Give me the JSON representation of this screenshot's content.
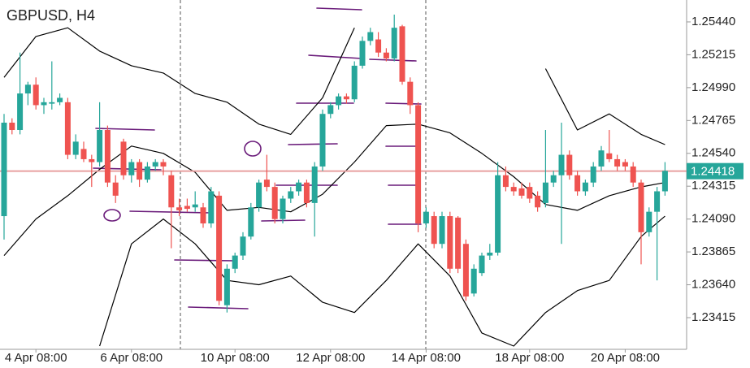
{
  "chart_data": {
    "type": "candlestick",
    "title": "GBPUSD, H4",
    "categories": [
      null,
      null,
      null,
      null,
      "4 Apr 08:00",
      null,
      null,
      null,
      null,
      null,
      null,
      null,
      null,
      null,
      null,
      null,
      "6 Apr 08:00",
      null,
      null,
      null,
      null,
      null,
      null,
      null,
      null,
      null,
      null,
      null,
      null,
      "10 Apr 08:00",
      null,
      null,
      null,
      null,
      null,
      null,
      null,
      null,
      null,
      null,
      null,
      "12 Apr 08:00",
      null,
      null,
      null,
      null,
      null,
      null,
      null,
      null,
      null,
      null,
      null,
      "14 Apr 08:00",
      null,
      null,
      null,
      null,
      null,
      null,
      null,
      null,
      null,
      null,
      null,
      null,
      "18 Apr 08:00",
      null,
      null,
      null,
      null,
      null,
      null,
      null,
      null,
      null,
      null,
      null,
      "20 Apr 08:00",
      null,
      null,
      null,
      null,
      null
    ],
    "open": [
      1.2411,
      1.2475,
      1.247,
      1.2495,
      1.2501,
      1.2487,
      1.2488,
      1.2489,
      1.2489,
      1.2453,
      1.2457,
      1.245,
      1.2448,
      1.247,
      1.2434,
      1.2462,
      1.2439,
      1.2448,
      1.2436,
      1.2445,
      1.2448,
      1.2439,
      1.2417,
      1.2418,
      1.2417,
      1.2417,
      1.2406,
      1.2425,
      1.235,
      1.2375,
      1.2384,
      1.2397,
      1.2417,
      1.2436,
      1.2431,
      1.2409,
      1.2423,
      1.2428,
      1.2434,
      1.242,
      1.2445,
      1.2481,
      1.2487,
      1.2493,
      1.2491,
      1.2514,
      1.2531,
      1.2532,
      1.2523,
      1.2519,
      1.2541,
      1.2503,
      1.2487,
      1.2406,
      1.2411,
      1.2392,
      1.2411,
      1.241,
      1.2392,
      1.2358,
      1.2372,
      1.2384,
      1.2386,
      1.2439,
      1.2431,
      1.243,
      1.2431,
      1.2425,
      1.242,
      1.2434,
      1.2439,
      1.2453,
      1.2439,
      1.2428,
      1.2434,
      1.2445,
      1.2454,
      1.245,
      1.2448,
      1.2445,
      1.2434,
      1.24,
      1.2414,
      1.2428
    ],
    "high": [
      1.2481,
      1.2478,
      1.2523,
      1.2503,
      1.2506,
      1.2492,
      1.2517,
      1.2495,
      1.2492,
      1.2467,
      1.2462,
      1.2453,
      1.2489,
      1.2473,
      1.2439,
      1.2464,
      1.245,
      1.245,
      1.2448,
      1.245,
      1.245,
      1.2442,
      1.2423,
      1.2423,
      1.2428,
      1.242,
      1.2431,
      1.2428,
      1.2378,
      1.2386,
      1.24,
      1.242,
      1.2436,
      1.2453,
      1.2434,
      1.2425,
      1.2431,
      1.2436,
      1.2436,
      1.2448,
      1.2484,
      1.2489,
      1.2495,
      1.2495,
      1.2517,
      1.2534,
      1.254,
      1.2537,
      1.2526,
      1.2549,
      1.2542,
      1.2506,
      1.2489,
      1.2417,
      1.2414,
      1.2414,
      1.2414,
      1.2411,
      1.2395,
      1.2378,
      1.2386,
      1.2392,
      1.2448,
      1.2445,
      1.2434,
      1.2434,
      1.2434,
      1.2428,
      1.247,
      1.2442,
      1.2475,
      1.2456,
      1.2442,
      1.2436,
      1.2448,
      1.2459,
      1.247,
      1.2453,
      1.245,
      1.2448,
      1.2436,
      1.2417,
      1.2431,
      1.2448
    ],
    "low": [
      1.2395,
      1.2467,
      1.2467,
      1.2487,
      1.2484,
      1.2481,
      1.2484,
      1.2487,
      1.245,
      1.245,
      1.2448,
      1.2431,
      1.2445,
      1.2431,
      1.242,
      1.2436,
      1.2434,
      1.2431,
      1.2434,
      1.2442,
      1.2439,
      1.2389,
      1.2411,
      1.2414,
      1.2414,
      1.2403,
      1.2403,
      1.235,
      1.2345,
      1.2372,
      1.2381,
      1.2395,
      1.2414,
      1.2428,
      1.2406,
      1.2406,
      1.242,
      1.2425,
      1.2417,
      1.2397,
      1.2442,
      1.2478,
      1.2484,
      1.2488,
      1.2489,
      1.2512,
      1.2528,
      1.252,
      1.2517,
      1.2517,
      1.2501,
      1.2481,
      1.24,
      1.2403,
      1.2389,
      1.2389,
      1.2372,
      1.2372,
      1.2353,
      1.2356,
      1.237,
      1.2381,
      1.2384,
      1.2428,
      1.2425,
      1.2423,
      1.242,
      1.2414,
      1.2417,
      1.2431,
      1.2392,
      1.2436,
      1.2425,
      1.2425,
      1.2431,
      1.2442,
      1.2448,
      1.2442,
      1.2442,
      1.2431,
      1.2378,
      1.2397,
      1.2367,
      1.2425
    ],
    "close": [
      1.2475,
      1.247,
      1.2495,
      1.2501,
      1.2487,
      1.2489,
      1.2489,
      1.2492,
      1.2453,
      1.2462,
      1.245,
      1.2448,
      1.247,
      1.2434,
      1.2425,
      1.2439,
      1.2448,
      1.2436,
      1.2445,
      1.2448,
      1.2445,
      1.2417,
      1.2415,
      1.2416,
      1.2419,
      1.2406,
      1.2428,
      1.2353,
      1.2375,
      1.2384,
      1.2397,
      1.2417,
      1.2434,
      1.2431,
      1.2409,
      1.2423,
      1.2428,
      1.2434,
      1.242,
      1.2445,
      1.2481,
      1.2487,
      1.2493,
      1.2491,
      1.2514,
      1.2531,
      1.2537,
      1.2523,
      1.2519,
      1.254,
      1.2503,
      1.2487,
      1.2406,
      1.2414,
      1.2392,
      1.2411,
      1.2375,
      1.2375,
      1.2356,
      1.2375,
      1.2384,
      1.2386,
      1.2439,
      1.2431,
      1.2428,
      1.2425,
      1.2423,
      1.2417,
      1.2434,
      1.2439,
      1.2453,
      1.2439,
      1.2428,
      1.2434,
      1.2445,
      1.2456,
      1.245,
      1.2445,
      1.2445,
      1.2434,
      1.24,
      1.2414,
      1.2428,
      1.2442
    ],
    "up_color": "#26a69a",
    "down_color": "#ef5350",
    "bands": {
      "x": [
        0,
        4,
        8,
        12,
        16,
        20,
        24,
        28,
        32,
        36,
        40,
        44,
        48,
        52,
        56,
        60,
        64,
        68,
        72,
        76,
        80,
        83
      ],
      "upper": [
        1.2506,
        1.2534,
        1.254,
        1.2524,
        1.2514,
        1.2509,
        1.2495,
        1.2489,
        1.2474,
        1.2467,
        1.2492,
        1.254,
        null,
        null,
        null,
        null,
        null,
        1.2512,
        1.247,
        1.2481,
        1.2467,
        1.246
      ],
      "middle": [
        1.2384,
        1.2409,
        1.2425,
        1.2443,
        1.2459,
        1.2454,
        1.2441,
        1.2415,
        1.2417,
        1.2414,
        1.2426,
        1.2448,
        1.2473,
        1.2474,
        1.2468,
        1.2454,
        1.2438,
        1.2419,
        1.2415,
        1.2425,
        1.2431,
        1.2434
      ],
      "lower": [
        null,
        null,
        null,
        1.2322,
        1.2392,
        1.2409,
        1.2392,
        1.2367,
        1.2364,
        1.237,
        1.2352,
        1.2345,
        1.2367,
        1.2392,
        1.237,
        1.2331,
        1.2322,
        1.2345,
        1.236,
        1.2367,
        1.2397,
        1.2411
      ],
      "color": "#000000"
    },
    "last_price": 1.24418,
    "ylim": [
      1.23198,
      1.2559
    ],
    "yticks": [
      {
        "value": 1.2544,
        "label": "1.25440"
      },
      1.25215,
      {
        "value": 1.2499,
        "label": "1.24990"
      },
      1.24765,
      {
        "value": 1.2454,
        "label": "1.24540"
      },
      1.24315,
      {
        "value": 1.2409,
        "label": "1.24090"
      },
      1.23865,
      {
        "value": 1.2364,
        "label": "1.23640"
      },
      1.23415
    ]
  }
}
